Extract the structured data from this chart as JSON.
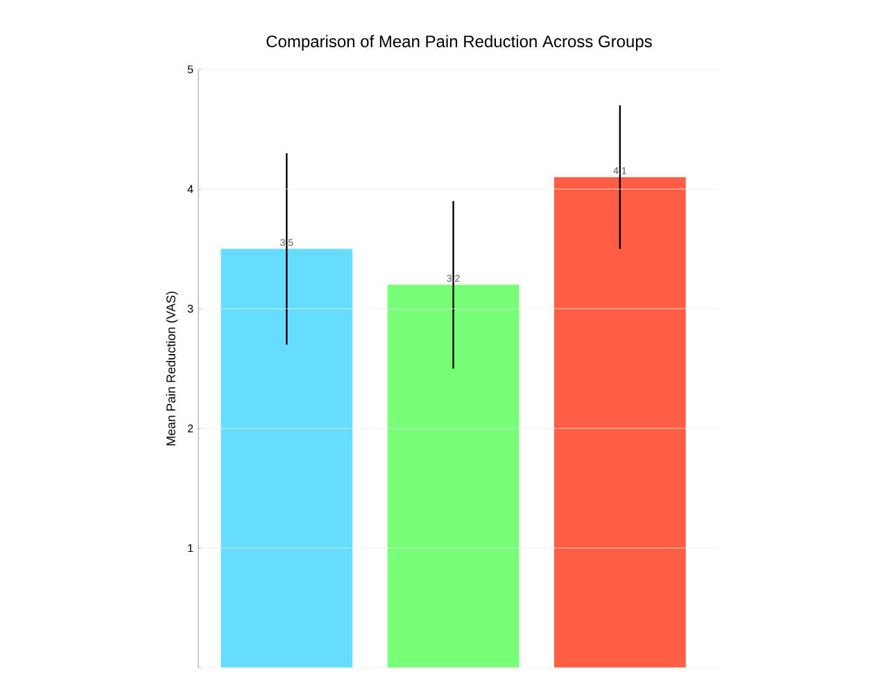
{
  "chart_data": {
    "type": "bar",
    "title": "Comparison of Mean Pain Reduction Across Groups",
    "ylabel": "Mean Pain Reduction (VAS)",
    "categories": [
      null,
      null,
      null
    ],
    "values": [
      3.5,
      3.2,
      4.1
    ],
    "colors": [
      "#66ddff",
      "#77ff77",
      "#ff5e45"
    ],
    "errors": [
      [
        2.7,
        4.3
      ],
      [
        2.5,
        3.9
      ],
      [
        3.5,
        4.7
      ]
    ],
    "data_labels": true,
    "ylim": [
      0,
      5
    ],
    "yticks": [
      {
        "value": 0,
        "label": null
      },
      1,
      2,
      3,
      4,
      5
    ],
    "grid": "y"
  }
}
